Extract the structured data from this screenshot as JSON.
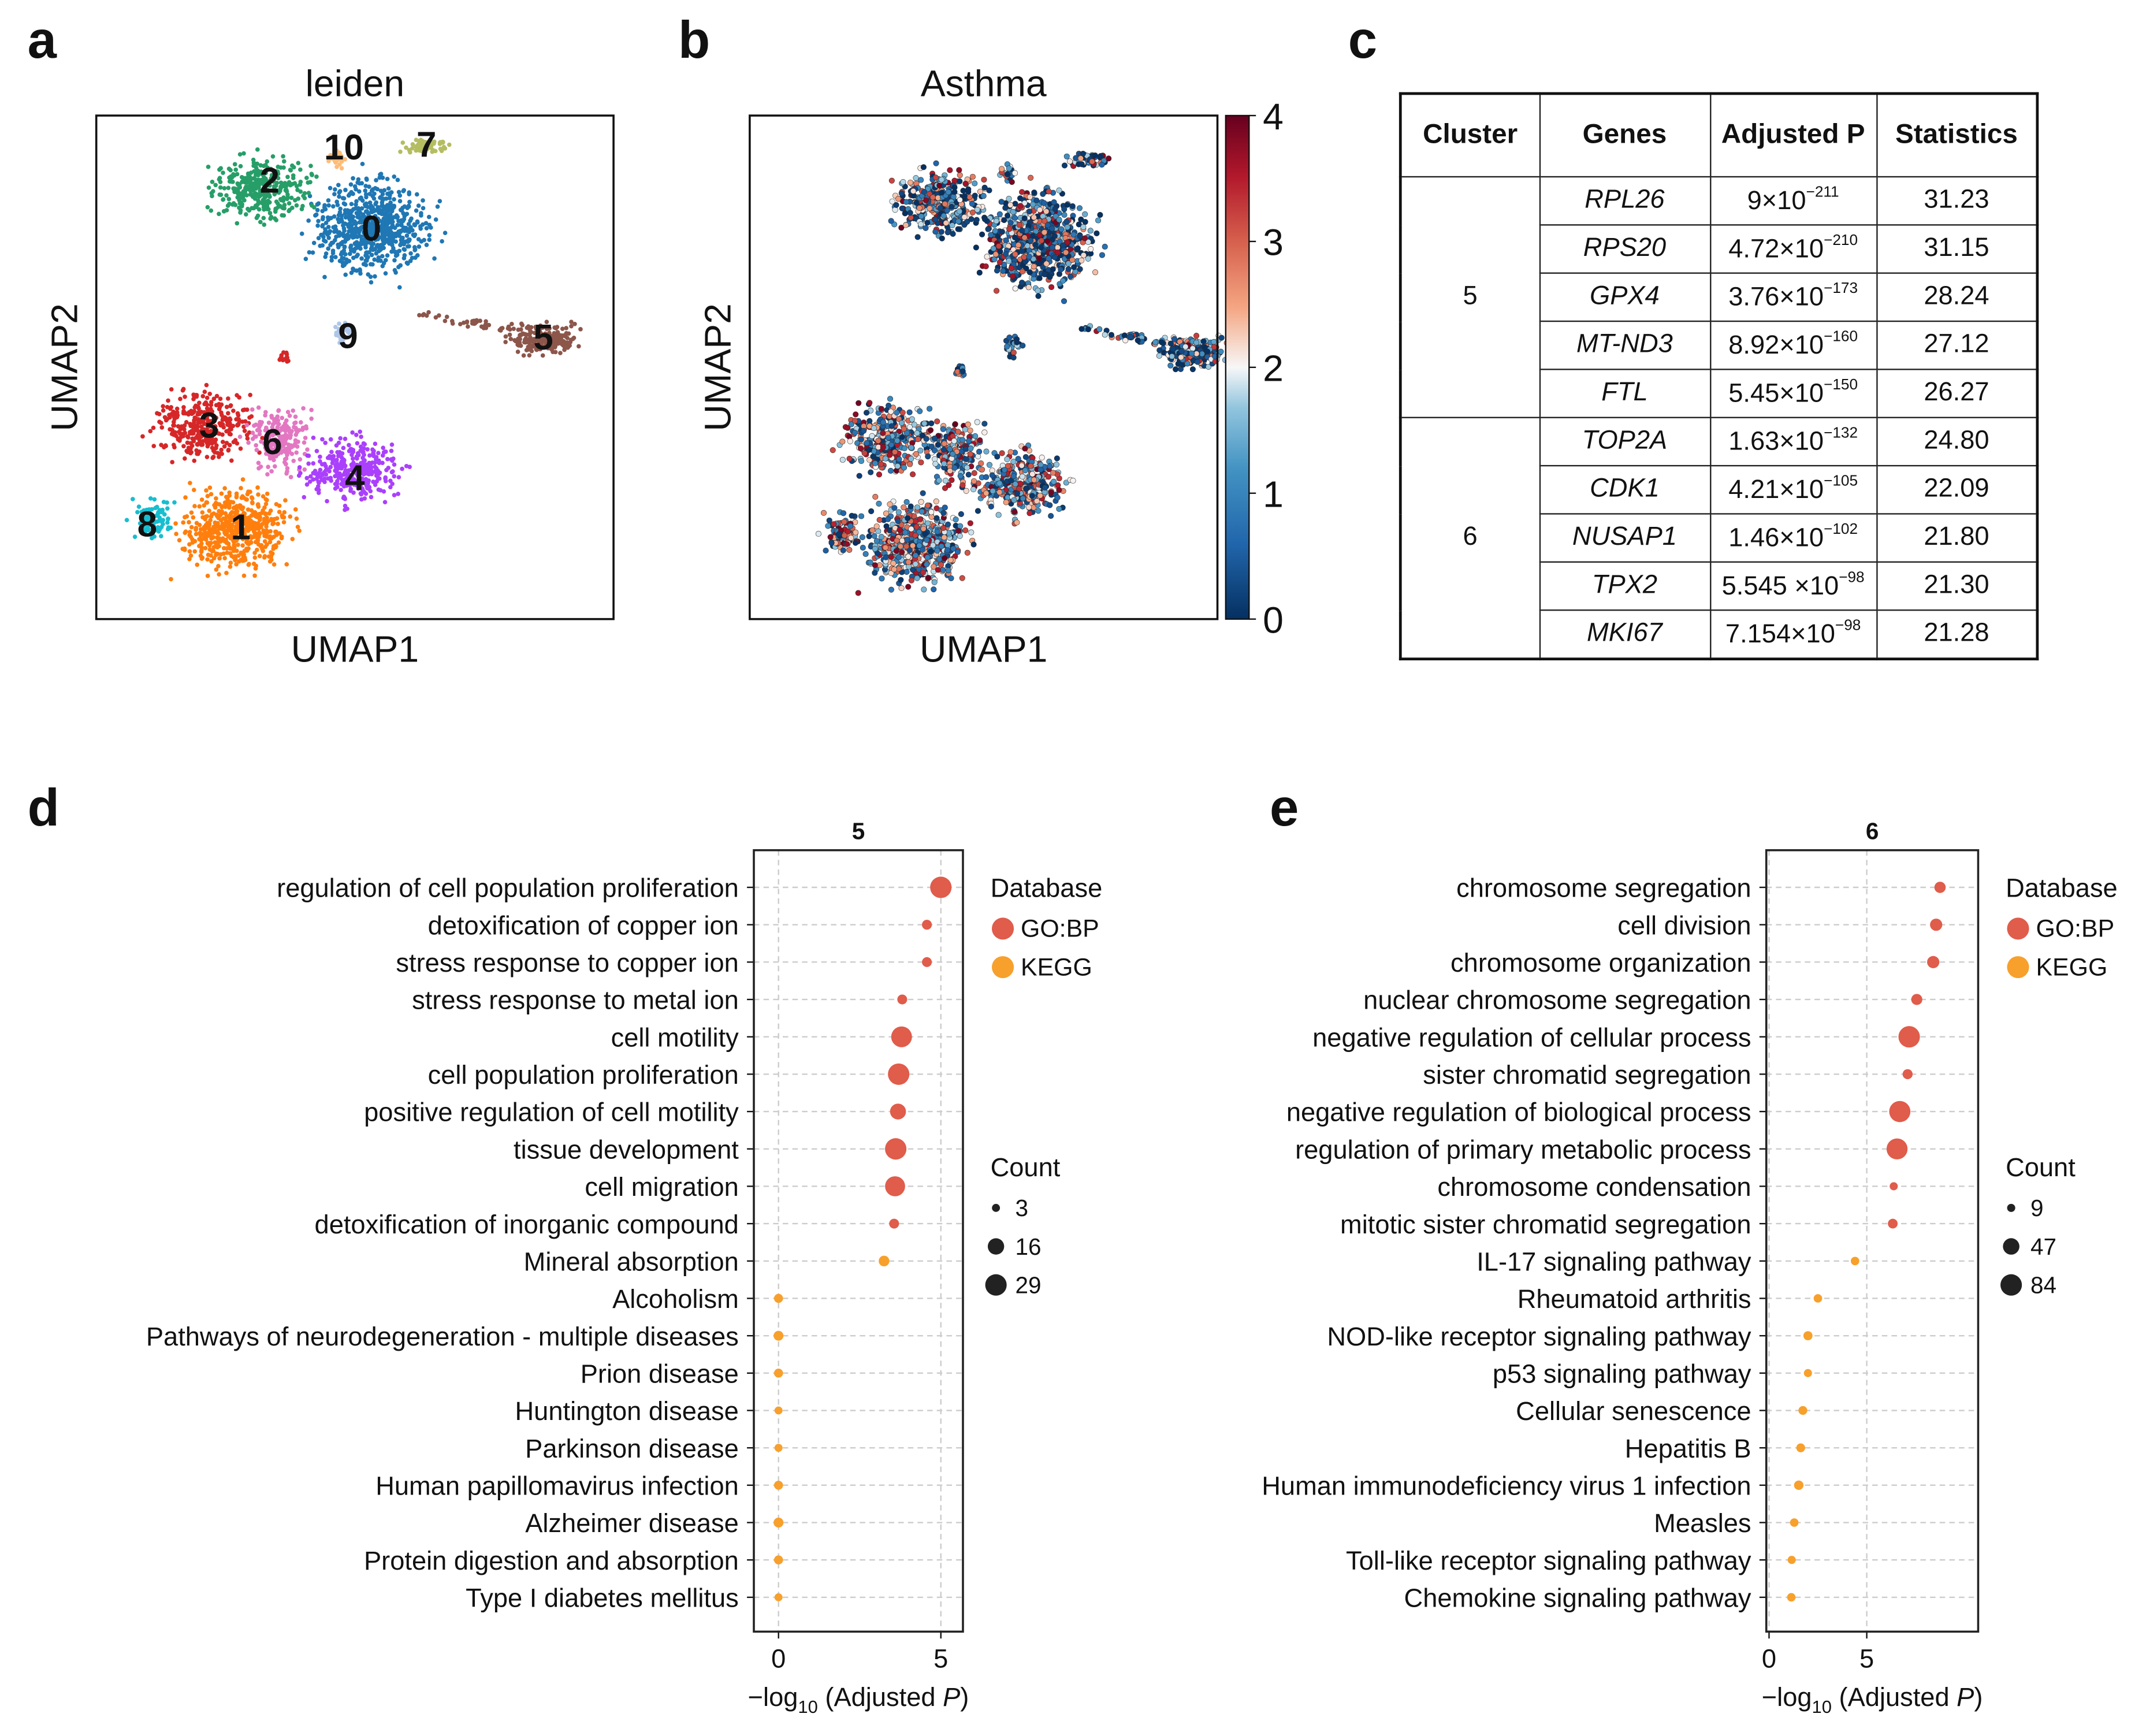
{
  "panel_labels": {
    "a": "a",
    "b": "b",
    "c": "c",
    "d": "d",
    "e": "e"
  },
  "umap_a": {
    "title": "leiden",
    "xlabel": "UMAP1",
    "ylabel": "UMAP2",
    "cluster_labels": [
      "0",
      "1",
      "2",
      "3",
      "4",
      "5",
      "6",
      "7",
      "8",
      "9",
      "10"
    ],
    "colors": {
      "0": "#1f77b4",
      "1": "#ff7f0e",
      "2": "#279e68",
      "3": "#d62728",
      "4": "#aa40fc",
      "5": "#8c564b",
      "6": "#e377c2",
      "7": "#b5bd61",
      "8": "#17becf",
      "9": "#aec7e8",
      "10": "#ffbb78"
    }
  },
  "umap_b": {
    "title": "Asthma",
    "xlabel": "UMAP1",
    "ylabel": "UMAP2",
    "colorbar_ticks": [
      "0",
      "1",
      "2",
      "3",
      "4"
    ],
    "colorbar_range": [
      0,
      4
    ]
  },
  "table": {
    "headers": [
      "Cluster",
      "Genes",
      "Adjusted P",
      "Statistics"
    ],
    "groups": [
      {
        "cluster": "5",
        "rows": [
          {
            "gene": "RPL26",
            "p_mant": "9×10",
            "p_exp": "−211",
            "stat": "31.23"
          },
          {
            "gene": "RPS20",
            "p_mant": "4.72×10",
            "p_exp": "−210",
            "stat": "31.15"
          },
          {
            "gene": "GPX4",
            "p_mant": "3.76×10",
            "p_exp": "−173",
            "stat": "28.24"
          },
          {
            "gene": "MT-ND3",
            "p_mant": "8.92×10",
            "p_exp": "−160",
            "stat": "27.12"
          },
          {
            "gene": "FTL",
            "p_mant": "5.45×10",
            "p_exp": "−150",
            "stat": "26.27"
          }
        ]
      },
      {
        "cluster": "6",
        "rows": [
          {
            "gene": "TOP2A",
            "p_mant": "1.63×10",
            "p_exp": "−132",
            "stat": "24.80"
          },
          {
            "gene": "CDK1",
            "p_mant": "4.21×10",
            "p_exp": "−105",
            "stat": "22.09"
          },
          {
            "gene": "NUSAP1",
            "p_mant": "1.46×10",
            "p_exp": "−102",
            "stat": "21.80"
          },
          {
            "gene": "TPX2",
            "p_mant": "5.545 ×10",
            "p_exp": "−98",
            "stat": "21.30"
          },
          {
            "gene": "MKI67",
            "p_mant": "7.154×10",
            "p_exp": "−98",
            "stat": "21.28"
          }
        ]
      }
    ]
  },
  "chart_data": [
    {
      "type": "scatter",
      "title": "5",
      "xlabel_parts": [
        "−log",
        "10",
        " (Adjusted ",
        "P",
        ")"
      ],
      "xlim": [
        -0.76,
        5.68
      ],
      "xticks": [
        0,
        5
      ],
      "xtick_labels": [
        "0",
        "5"
      ],
      "legend_db_title": "Database",
      "legend_db": [
        {
          "name": "GO:BP",
          "color": "#e05c4b"
        },
        {
          "name": "KEGG",
          "color": "#f7a02c"
        }
      ],
      "legend_count_title": "Count",
      "legend_counts": [
        3,
        16,
        29
      ],
      "legend_count_labels": [
        "3",
        "16",
        "29"
      ],
      "count_max": 29,
      "terms": [
        {
          "term": "regulation of cell population proliferation",
          "db": "GO:BP",
          "x": 5.0,
          "count": 29
        },
        {
          "term": "detoxification of copper ion",
          "db": "GO:BP",
          "x": 4.57,
          "count": 5
        },
        {
          "term": "stress response to copper ion",
          "db": "GO:BP",
          "x": 4.57,
          "count": 5
        },
        {
          "term": "stress response to metal ion",
          "db": "GO:BP",
          "x": 3.81,
          "count": 5
        },
        {
          "term": "cell motility",
          "db": "GO:BP",
          "x": 3.79,
          "count": 27
        },
        {
          "term": "cell population proliferation",
          "db": "GO:BP",
          "x": 3.7,
          "count": 29
        },
        {
          "term": "positive regulation of cell motility",
          "db": "GO:BP",
          "x": 3.68,
          "count": 15
        },
        {
          "term": "tissue development",
          "db": "GO:BP",
          "x": 3.61,
          "count": 29
        },
        {
          "term": "cell migration",
          "db": "GO:BP",
          "x": 3.59,
          "count": 25
        },
        {
          "term": "detoxification of inorganic compound",
          "db": "GO:BP",
          "x": 3.56,
          "count": 5
        },
        {
          "term": "Mineral absorption",
          "db": "KEGG",
          "x": 3.25,
          "count": 6
        },
        {
          "term": "Alcoholism",
          "db": "KEGG",
          "x": 0.0,
          "count": 4
        },
        {
          "term": "Pathways of neurodegeneration - multiple diseases",
          "db": "KEGG",
          "x": 0.0,
          "count": 5
        },
        {
          "term": "Prion disease",
          "db": "KEGG",
          "x": 0.0,
          "count": 4
        },
        {
          "term": "Huntington disease",
          "db": "KEGG",
          "x": 0.0,
          "count": 3
        },
        {
          "term": "Parkinson disease",
          "db": "KEGG",
          "x": 0.0,
          "count": 3
        },
        {
          "term": "Human papillomavirus infection",
          "db": "KEGG",
          "x": 0.0,
          "count": 4
        },
        {
          "term": "Alzheimer disease",
          "db": "KEGG",
          "x": 0.0,
          "count": 5
        },
        {
          "term": "Protein digestion and absorption",
          "db": "KEGG",
          "x": 0.0,
          "count": 4
        },
        {
          "term": "Type I diabetes mellitus",
          "db": "KEGG",
          "x": 0.0,
          "count": 3
        }
      ]
    },
    {
      "type": "scatter",
      "title": "6",
      "xlabel_parts": [
        "−log",
        "10",
        " (Adjusted ",
        "P",
        ")"
      ],
      "xlim": [
        -0.14,
        10.7
      ],
      "xticks": [
        0,
        5
      ],
      "xtick_labels": [
        "0",
        "5"
      ],
      "legend_db_title": "Database",
      "legend_db": [
        {
          "name": "GO:BP",
          "color": "#e05c4b"
        },
        {
          "name": "KEGG",
          "color": "#f7a02c"
        }
      ],
      "legend_count_title": "Count",
      "legend_counts": [
        9,
        47,
        84
      ],
      "legend_count_labels": [
        "9",
        "47",
        "84"
      ],
      "count_max": 84,
      "terms": [
        {
          "term": "chromosome segregation",
          "db": "GO:BP",
          "x": 8.75,
          "count": 20
        },
        {
          "term": "cell division",
          "db": "GO:BP",
          "x": 8.55,
          "count": 24
        },
        {
          "term": "chromosome organization",
          "db": "GO:BP",
          "x": 8.4,
          "count": 24
        },
        {
          "term": "nuclear chromosome segregation",
          "db": "GO:BP",
          "x": 7.56,
          "count": 19
        },
        {
          "term": "negative regulation of cellular process",
          "db": "GO:BP",
          "x": 7.17,
          "count": 84
        },
        {
          "term": "sister chromatid segregation",
          "db": "GO:BP",
          "x": 7.09,
          "count": 15
        },
        {
          "term": "negative regulation of biological process",
          "db": "GO:BP",
          "x": 6.69,
          "count": 82
        },
        {
          "term": "regulation of primary metabolic process",
          "db": "GO:BP",
          "x": 6.55,
          "count": 80
        },
        {
          "term": "chromosome condensation",
          "db": "GO:BP",
          "x": 6.38,
          "count": 9
        },
        {
          "term": "mitotic sister chromatid segregation",
          "db": "GO:BP",
          "x": 6.33,
          "count": 14
        },
        {
          "term": "IL-17 signaling pathway",
          "db": "KEGG",
          "x": 4.4,
          "count": 10
        },
        {
          "term": "Rheumatoid arthritis",
          "db": "KEGG",
          "x": 2.5,
          "count": 10
        },
        {
          "term": "NOD-like receptor signaling pathway",
          "db": "KEGG",
          "x": 1.99,
          "count": 12
        },
        {
          "term": "p53 signaling pathway",
          "db": "KEGG",
          "x": 1.99,
          "count": 9
        },
        {
          "term": "Cellular senescence",
          "db": "KEGG",
          "x": 1.73,
          "count": 11
        },
        {
          "term": "Hepatitis B",
          "db": "KEGG",
          "x": 1.62,
          "count": 11
        },
        {
          "term": "Human immunodeficiency virus 1 infection",
          "db": "KEGG",
          "x": 1.52,
          "count": 13
        },
        {
          "term": "Measles",
          "db": "KEGG",
          "x": 1.29,
          "count": 10
        },
        {
          "term": "Toll-like receptor signaling pathway",
          "db": "KEGG",
          "x": 1.16,
          "count": 9
        },
        {
          "term": "Chemokine signaling pathway",
          "db": "KEGG",
          "x": 1.14,
          "count": 10
        }
      ]
    }
  ]
}
